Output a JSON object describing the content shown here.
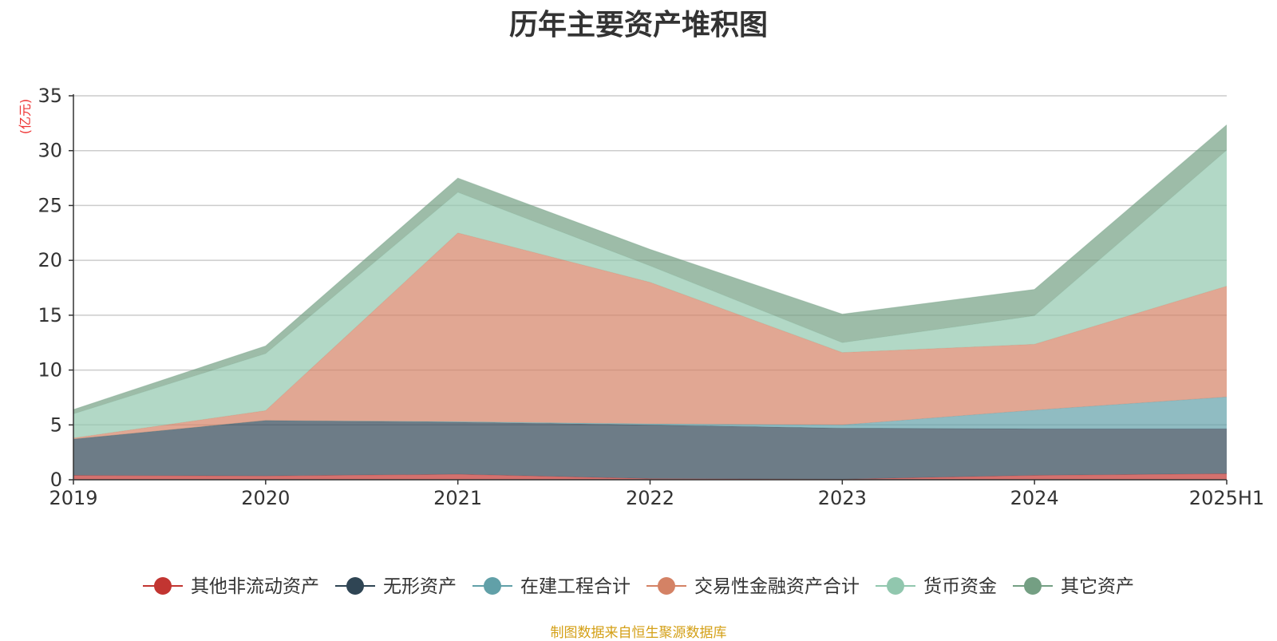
{
  "chart_data": {
    "type": "area",
    "title": "历年主要资产堆积图",
    "ylabel": "(亿元)",
    "ylim": [
      0,
      35
    ],
    "yticks": [
      0,
      5,
      10,
      15,
      20,
      25,
      30,
      35
    ],
    "stacked": true,
    "grid": true,
    "legend_position": "bottom",
    "categories": [
      "2019",
      "2020",
      "2021",
      "2022",
      "2023",
      "2024",
      "2025H1"
    ],
    "series": [
      {
        "name": "其他非流动资产",
        "color": "#c23531",
        "values": [
          0.4,
          0.35,
          0.5,
          0.1,
          0.05,
          0.4,
          0.55
        ]
      },
      {
        "name": "无形资产",
        "color": "#2f4554",
        "values": [
          3.3,
          5.05,
          4.75,
          4.9,
          4.65,
          4.25,
          4.1
        ]
      },
      {
        "name": "在建工程合计",
        "color": "#61a0a8",
        "values": [
          0.0,
          0.0,
          0.05,
          0.1,
          0.3,
          1.7,
          2.9
        ]
      },
      {
        "name": "交易性金融资产合计",
        "color": "#d48265",
        "values": [
          0.1,
          0.9,
          17.2,
          12.9,
          6.6,
          6.0,
          10.1
        ]
      },
      {
        "name": "货币资金",
        "color": "#91c7ae",
        "values": [
          2.2,
          5.2,
          3.7,
          1.5,
          0.9,
          2.6,
          12.4
        ]
      },
      {
        "name": "其它资产",
        "color": "#749f83",
        "values": [
          0.4,
          0.7,
          1.3,
          1.5,
          2.6,
          2.4,
          2.3
        ]
      }
    ]
  },
  "source_note": "制图数据来自恒生聚源数据库",
  "colors": {
    "axis": "#333333",
    "grid": "#cccccc",
    "unit_label": "#ee3333",
    "source_note": "#d4a017"
  }
}
